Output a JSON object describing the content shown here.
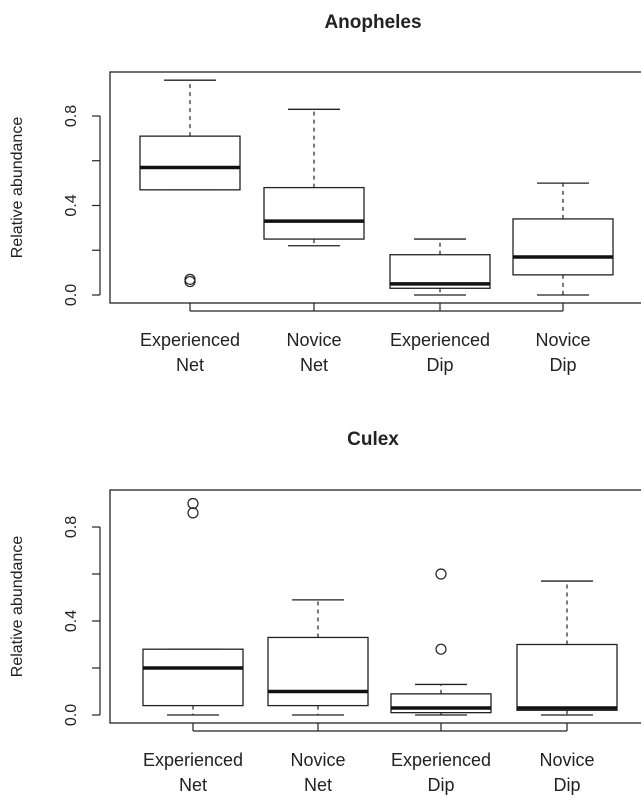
{
  "chart_data": [
    {
      "type": "box",
      "title": "Anopheles",
      "ylabel": "Relative abundance",
      "xlabel": "",
      "ylim": [
        0,
        1
      ],
      "yticks": [
        "0.0",
        "0.4",
        "0.8"
      ],
      "categories": [
        {
          "line1": "Experienced",
          "line2": "Net"
        },
        {
          "line1": "Novice",
          "line2": "Net"
        },
        {
          "line1": "Experienced",
          "line2": "Dip"
        },
        {
          "line1": "Novice",
          "line2": "Dip"
        }
      ],
      "boxes": [
        {
          "whisker_low": 0.47,
          "q1": 0.47,
          "median": 0.57,
          "q3": 0.71,
          "whisker_high": 0.96,
          "outliers": [
            0.06,
            0.07
          ]
        },
        {
          "whisker_low": 0.22,
          "q1": 0.25,
          "median": 0.33,
          "q3": 0.48,
          "whisker_high": 0.83,
          "outliers": []
        },
        {
          "whisker_low": 0.0,
          "q1": 0.03,
          "median": 0.05,
          "q3": 0.18,
          "whisker_high": 0.25,
          "outliers": []
        },
        {
          "whisker_low": 0.0,
          "q1": 0.09,
          "median": 0.17,
          "q3": 0.34,
          "whisker_high": 0.5,
          "outliers": []
        }
      ]
    },
    {
      "type": "box",
      "title": "Culex",
      "ylabel": "Relative abundance",
      "xlabel": "",
      "ylim": [
        0,
        1
      ],
      "yticks": [
        "0.0",
        "0.4",
        "0.8"
      ],
      "categories": [
        {
          "line1": "Experienced",
          "line2": "Net"
        },
        {
          "line1": "Novice",
          "line2": "Net"
        },
        {
          "line1": "Experienced",
          "line2": "Dip"
        },
        {
          "line1": "Novice",
          "line2": "Dip"
        }
      ],
      "boxes": [
        {
          "whisker_low": 0.0,
          "q1": 0.04,
          "median": 0.2,
          "q3": 0.28,
          "whisker_high": 0.28,
          "outliers": [
            0.86,
            0.9
          ]
        },
        {
          "whisker_low": 0.0,
          "q1": 0.04,
          "median": 0.1,
          "q3": 0.33,
          "whisker_high": 0.49,
          "outliers": []
        },
        {
          "whisker_low": 0.0,
          "q1": 0.01,
          "median": 0.03,
          "q3": 0.09,
          "whisker_high": 0.13,
          "outliers": [
            0.28,
            0.6
          ]
        },
        {
          "whisker_low": 0.0,
          "q1": 0.02,
          "median": 0.03,
          "q3": 0.3,
          "whisker_high": 0.57,
          "outliers": []
        }
      ]
    }
  ]
}
